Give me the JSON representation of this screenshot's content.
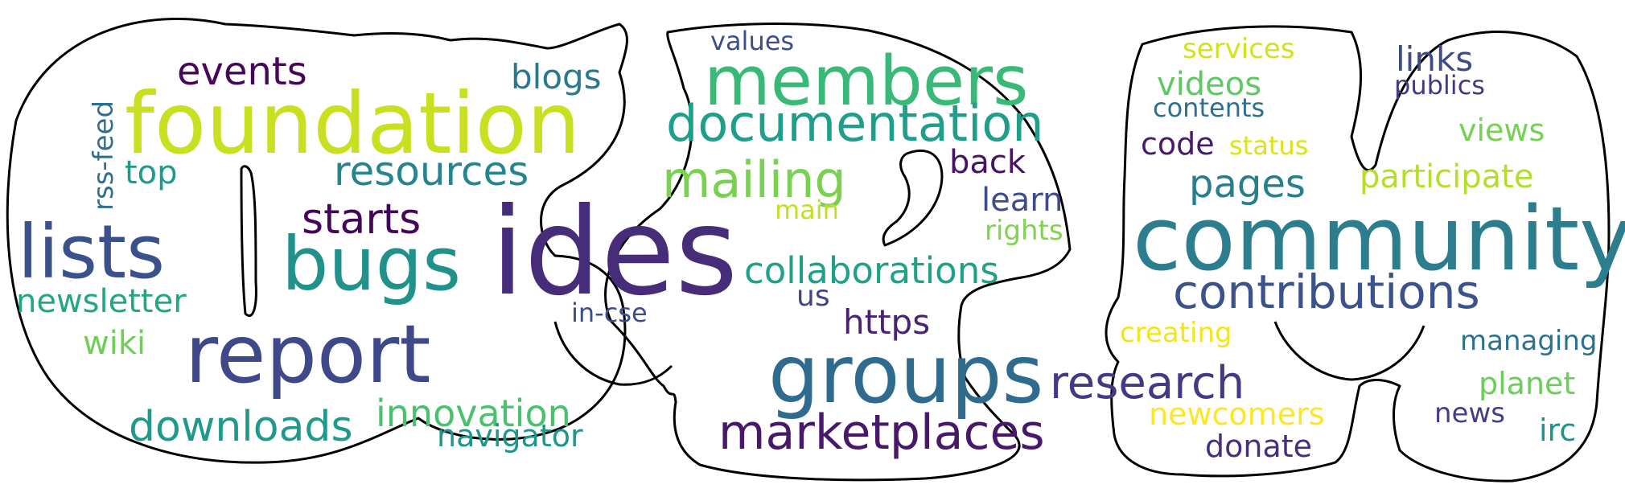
{
  "words": [
    {
      "text": "ides",
      "color": "#472c7a"
    },
    {
      "text": "community",
      "color": "#2c7d8e"
    },
    {
      "text": "foundation",
      "color": "#c8e020"
    },
    {
      "text": "members",
      "color": "#38b977"
    },
    {
      "text": "groups",
      "color": "#2f6b8e"
    },
    {
      "text": "report",
      "color": "#3f4889"
    },
    {
      "text": "lists",
      "color": "#3b518b"
    },
    {
      "text": "bugs",
      "color": "#21918c"
    },
    {
      "text": "documentation",
      "color": "#1f9e89"
    },
    {
      "text": "mailing",
      "color": "#7ad151"
    },
    {
      "text": "contributions",
      "color": "#3b528b"
    },
    {
      "text": "marketplaces",
      "color": "#48186a"
    },
    {
      "text": "research",
      "color": "#443983"
    },
    {
      "text": "resources",
      "color": "#25848e"
    },
    {
      "text": "collaborations",
      "color": "#1fa187"
    },
    {
      "text": "downloads",
      "color": "#1f9a8a"
    },
    {
      "text": "starts",
      "color": "#450559"
    },
    {
      "text": "events",
      "color": "#46075a"
    },
    {
      "text": "innovation",
      "color": "#4ac16d"
    },
    {
      "text": "pages",
      "color": "#277f8e"
    },
    {
      "text": "participate",
      "color": "#b5de2b"
    },
    {
      "text": "blogs",
      "color": "#2a788e"
    },
    {
      "text": "newsletter",
      "color": "#22a785"
    },
    {
      "text": "navigator",
      "color": "#1f968b"
    },
    {
      "text": "links",
      "color": "#3e4a89"
    },
    {
      "text": "https",
      "color": "#482374"
    },
    {
      "text": "learn",
      "color": "#3e4c8a"
    },
    {
      "text": "back",
      "color": "#471365"
    },
    {
      "text": "wiki",
      "color": "#6ece58"
    },
    {
      "text": "videos",
      "color": "#5ec962"
    },
    {
      "text": "top",
      "color": "#1e9b8a"
    },
    {
      "text": "code",
      "color": "#481b6d"
    },
    {
      "text": "newcomers",
      "color": "#fde725"
    },
    {
      "text": "donate",
      "color": "#472f7d"
    },
    {
      "text": "planet",
      "color": "#6ccd5a"
    },
    {
      "text": "managing",
      "color": "#2c728e"
    },
    {
      "text": "views",
      "color": "#75d054"
    },
    {
      "text": "creating",
      "color": "#f1e51d"
    },
    {
      "text": "rights",
      "color": "#7fd34e"
    },
    {
      "text": "irc",
      "color": "#1f948c"
    },
    {
      "text": "services",
      "color": "#d2e21b"
    },
    {
      "text": "contents",
      "color": "#2d708e"
    },
    {
      "text": "rss-feed",
      "color": "#2e6e8e"
    },
    {
      "text": "in-cse",
      "color": "#3e4c8a"
    },
    {
      "text": "main",
      "color": "#c2df23"
    },
    {
      "text": "status",
      "color": "#dde318"
    },
    {
      "text": "publics",
      "color": "#443a83"
    },
    {
      "text": "values",
      "color": "#3d4e8a"
    },
    {
      "text": "us",
      "color": "#414487"
    },
    {
      "text": "news",
      "color": "#433e85"
    }
  ]
}
